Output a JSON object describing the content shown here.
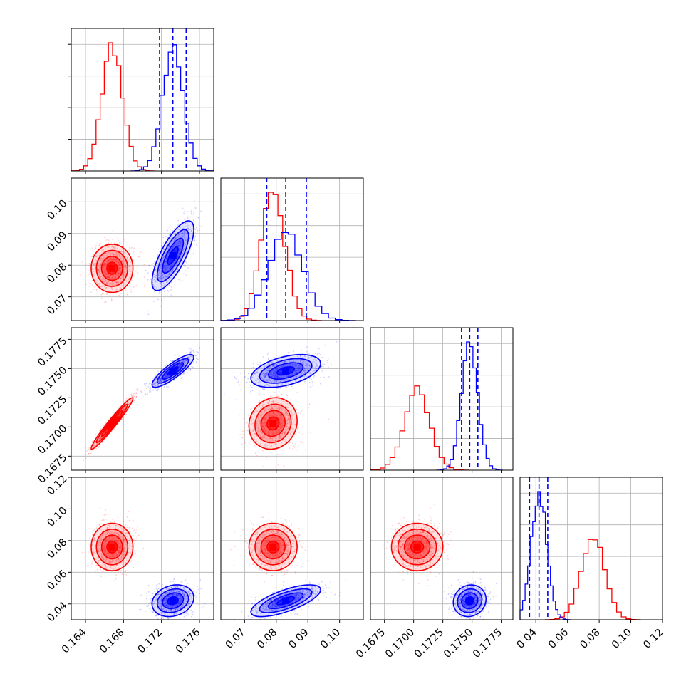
{
  "chart_data": {
    "type": "corner",
    "grid": true,
    "legend": "none",
    "colors": {
      "series_a": "#ff0000",
      "series_b": "#0000ff"
    },
    "parameters": [
      {
        "index": 0,
        "xlim": [
          0.1625,
          0.1775
        ],
        "ticks": [
          0.164,
          0.168,
          0.172,
          0.176
        ],
        "tick_labels": [
          "0.164",
          "0.168",
          "0.172",
          "0.176"
        ]
      },
      {
        "index": 1,
        "xlim": [
          0.0625,
          0.1075
        ],
        "ticks": [
          0.07,
          0.08,
          0.09,
          0.1
        ],
        "tick_labels": [
          "0.07",
          "0.08",
          "0.09",
          "0.10"
        ]
      },
      {
        "index": 2,
        "xlim": [
          0.1663,
          0.1785
        ],
        "ticks": [
          0.1675,
          0.17,
          0.1725,
          0.175,
          0.1775
        ],
        "tick_labels": [
          "0.1675",
          "0.1700",
          "0.1725",
          "0.1750",
          "0.1775"
        ]
      },
      {
        "index": 3,
        "xlim": [
          0.03,
          0.12
        ],
        "ticks": [
          0.04,
          0.06,
          0.08,
          0.1,
          0.12
        ],
        "tick_labels": [
          "0.04",
          "0.06",
          "0.08",
          "0.10",
          "0.12"
        ]
      }
    ],
    "series": [
      {
        "color": "#ff0000",
        "mean": [
          0.1668,
          0.079,
          0.1703,
          0.076
        ],
        "std": [
          0.0011,
          0.0038,
          0.0011,
          0.0075
        ],
        "quantiles_shown": false
      },
      {
        "color": "#0000ff",
        "mean": [
          0.1732,
          0.083,
          0.1748,
          0.042
        ],
        "std": [
          0.0011,
          0.0055,
          0.0007,
          0.005
        ],
        "quantiles": [
          [
            0.1718,
            0.1732,
            0.1746
          ],
          [
            0.077,
            0.083,
            0.0895
          ],
          [
            0.1741,
            0.1748,
            0.1755
          ],
          [
            0.036,
            0.042,
            0.0475
          ]
        ],
        "quantiles_shown": true
      }
    ],
    "correlations": {
      "series_a": {
        "1-0": 0.0,
        "2-0": 0.97,
        "2-1": 0.1,
        "3-0": 0.0,
        "3-1": 0.0,
        "3-2": 0.0
      },
      "series_b": {
        "1-0": 0.75,
        "2-0": 0.85,
        "2-1": 0.45,
        "3-0": 0.2,
        "3-1": 0.7,
        "3-2": 0.1
      }
    }
  }
}
